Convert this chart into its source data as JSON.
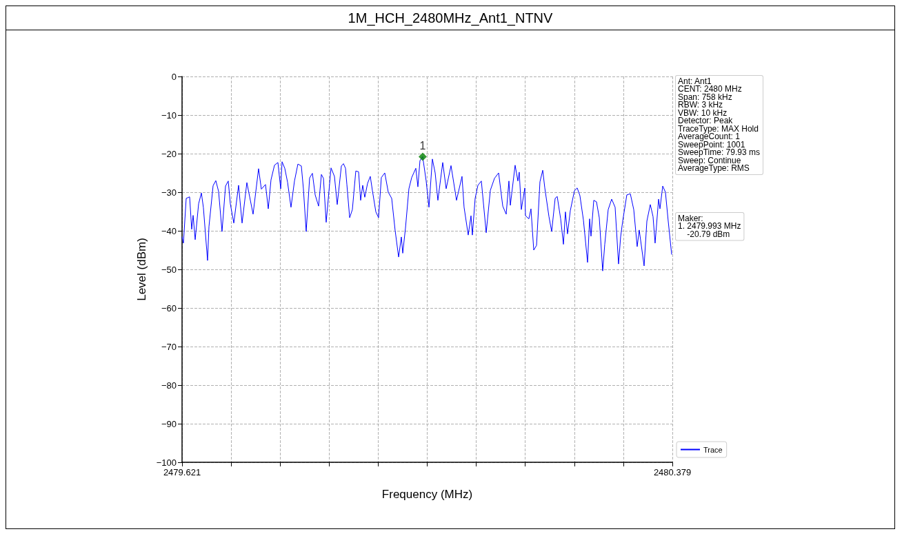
{
  "chart_data": {
    "type": "line",
    "title": "1M_HCH_2480MHz_Ant1_NTNV",
    "xlabel": "Frequency (MHz)",
    "ylabel": "Level (dBm)",
    "xlim": [
      2479.621,
      2480.379
    ],
    "ylim": [
      -100,
      0
    ],
    "xticks": [
      2479.621,
      {
        "value": 2479.6968,
        "label": null
      },
      {
        "value": 2479.7726,
        "label": null
      },
      {
        "value": 2479.8484,
        "label": null
      },
      {
        "value": 2479.9242,
        "label": null
      },
      {
        "value": 2480.0,
        "label": null
      },
      {
        "value": 2480.0758,
        "label": null
      },
      {
        "value": 2480.1516,
        "label": null
      },
      {
        "value": 2480.2274,
        "label": null
      },
      {
        "value": 2480.3032,
        "label": null
      },
      2480.379
    ],
    "yticks": [
      -100,
      -90,
      -80,
      -70,
      -60,
      -50,
      -40,
      -30,
      -20,
      -10,
      0
    ],
    "grid": true,
    "legend": "bottom right",
    "line_style": "solid",
    "series": [
      {
        "name": "Trace",
        "color": "#0000ff",
        "marker": "none",
        "x": [
          2479.621,
          2479.6231,
          2479.6274,
          2479.6327,
          2479.6359,
          2479.6381,
          2479.6413,
          2479.6466,
          2479.6509,
          2479.654,
          2479.6604,
          2479.6626,
          2479.669,
          2479.6732,
          2479.6775,
          2479.6828,
          2479.6882,
          2479.6924,
          2479.6956,
          2479.701,
          2479.7084,
          2479.7138,
          2479.7212,
          2479.7308,
          2479.7393,
          2479.7436,
          2479.75,
          2479.7543,
          2479.7585,
          2479.7639,
          2479.7692,
          2479.7735,
          2479.7756,
          2479.7798,
          2479.7841,
          2479.7894,
          2479.7948,
          2479.8001,
          2479.8054,
          2479.8086,
          2479.8129,
          2479.8182,
          2479.8225,
          2479.8268,
          2479.8321,
          2479.8364,
          2479.8396,
          2479.8438,
          2479.8513,
          2479.8566,
          2479.8609,
          2479.8673,
          2479.8705,
          2479.8737,
          2479.8758,
          2479.8801,
          2479.8843,
          2479.8896,
          2479.8939,
          2479.8971,
          2479.9003,
          2479.9035,
          2479.9078,
          2479.912,
          2479.9152,
          2479.9206,
          2479.9248,
          2479.9291,
          2479.9344,
          2479.9398,
          2479.9451,
          2479.9504,
          2479.9558,
          2479.96,
          2479.9622,
          2479.9664,
          2479.9717,
          2479.976,
          2479.9824,
          2479.9856,
          2479.9888,
          2479.993,
          2479.9984,
          2480.0027,
          2480.008,
          2480.0123,
          2480.0165,
          2480.024,
          2480.0293,
          2480.0368,
          2480.0453,
          2480.0538,
          2480.057,
          2480.0634,
          2480.0677,
          2480.0698,
          2480.0741,
          2480.0784,
          2480.0837,
          2480.0912,
          2480.0976,
          2480.104,
          2480.1104,
          2480.1168,
          2480.1221,
          2480.1263,
          2480.1285,
          2480.1359,
          2480.1402,
          2480.1423,
          2480.1455,
          2480.1509,
          2480.1519,
          2480.1572,
          2480.1604,
          2480.1647,
          2480.169,
          2480.1743,
          2480.1786,
          2480.1818,
          2480.1882,
          2480.1924,
          2480.1978,
          2480.201,
          2480.2063,
          2480.2106,
          2480.2137,
          2480.2169,
          2480.2212,
          2480.2276,
          2480.2319,
          2480.2361,
          2480.2415,
          2480.2479,
          2480.2511,
          2480.2532,
          2480.2575,
          2480.2617,
          2480.266,
          2480.2713,
          2480.2745,
          2480.2798,
          2480.2852,
          2480.2905,
          2480.2958,
          2480.299,
          2480.3022,
          2480.3086,
          2480.314,
          2480.3193,
          2480.3246,
          2480.3278,
          2480.3353,
          2480.3396,
          2480.3449,
          2480.3491,
          2480.3523,
          2480.3577,
          2480.3598,
          2480.3641,
          2480.3683,
          2480.3726,
          2480.3779
        ],
        "values": [
          -41.6,
          -43.2,
          -31.6,
          -31.2,
          -39.6,
          -36,
          -42.3,
          -33,
          -30.2,
          -34,
          -47.7,
          -38.9,
          -28.3,
          -27,
          -29.8,
          -40.2,
          -28.4,
          -27.1,
          -33,
          -38,
          -28.2,
          -38,
          -27.5,
          -35.7,
          -23.9,
          -29.2,
          -28,
          -34.3,
          -26.8,
          -23,
          -22.3,
          -29.1,
          -22.1,
          -23.8,
          -27.4,
          -33.9,
          -27.1,
          -22.7,
          -23.2,
          -29.1,
          -40.2,
          -26.3,
          -25.1,
          -30.7,
          -33.6,
          -25.4,
          -26.4,
          -37.8,
          -23.7,
          -25.9,
          -33.2,
          -23.2,
          -22.6,
          -23.8,
          -28,
          -36.6,
          -34.5,
          -24.5,
          -24.7,
          -32.1,
          -28.2,
          -31.3,
          -27.7,
          -25.9,
          -29.5,
          -35.1,
          -36.6,
          -26.2,
          -25,
          -30,
          -31.6,
          -39.9,
          -46.8,
          -41.6,
          -45.8,
          -39.3,
          -29.1,
          -26.2,
          -23.8,
          -28.6,
          -21.8,
          -20.79,
          -27.1,
          -33.9,
          -21.4,
          -25,
          -32.1,
          -22.3,
          -29.1,
          -23.1,
          -32.1,
          -25.9,
          -33.9,
          -41.1,
          -36.1,
          -41.1,
          -31.6,
          -28.2,
          -27.1,
          -40.5,
          -29.5,
          -26.4,
          -25,
          -33.6,
          -35.7,
          -27.1,
          -33.4,
          -23,
          -27.1,
          -24.8,
          -34.5,
          -28.9,
          -36.1,
          -36.9,
          -34.3,
          -45,
          -43.8,
          -27.3,
          -24.3,
          -28.9,
          -36.3,
          -40.2,
          -31.6,
          -31.1,
          -36.9,
          -43.5,
          -35.1,
          -40.8,
          -34.8,
          -29.6,
          -28.9,
          -30.9,
          -37.2,
          -48.2,
          -36.9,
          -41.4,
          -32.1,
          -32.5,
          -36.6,
          -50.4,
          -43.5,
          -34.5,
          -31.8,
          -33.9,
          -48.6,
          -41.6,
          -37.5,
          -30.7,
          -30.4,
          -34.5,
          -44.1,
          -39.8,
          -49.1,
          -37.5,
          -33.2,
          -36.3,
          -43.2,
          -31.8,
          -34.3,
          -28.4,
          -30,
          -37.5,
          -46.1
        ]
      },
      {
        "type": "scatter",
        "color": "#008000",
        "marker": "diamond",
        "x": [
          2479.993
        ],
        "values": [
          -20.79
        ]
      }
    ],
    "annotations": [
      {
        "text": "1",
        "x": 2479.993,
        "y": -20.79
      },
      "Ant: Ant1\nCENT: 2480 MHz\nSpan: 758 kHz\nRBW: 3 kHz\nVBW: 10 kHz\nDetector: Peak\nTraceType: MAX Hold\nAverageCount: 1\nSweepPoint: 1001\nSweepTime: 79.93 ms\nSweep: Continue\nAverageType: RMS",
      "Maker:\n1. 2479.993 MHz\n    -20.79 dBm"
    ]
  }
}
